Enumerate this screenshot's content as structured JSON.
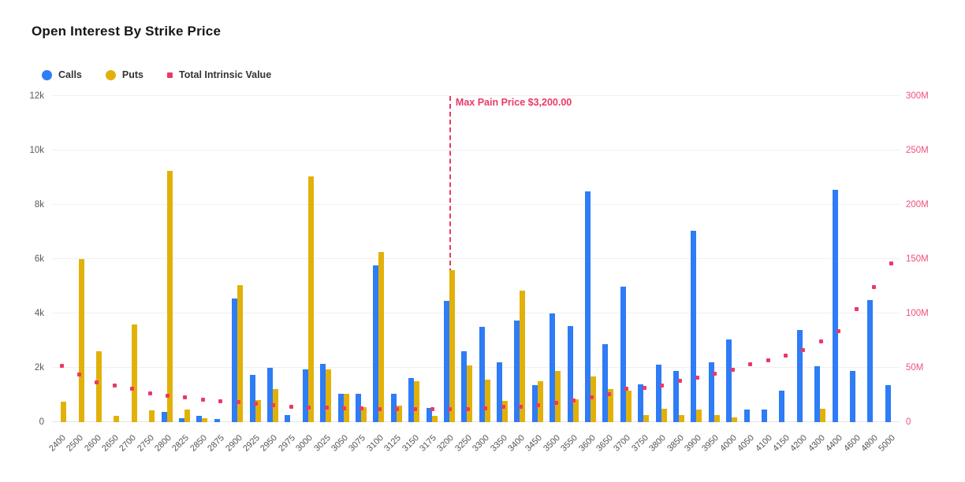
{
  "chart_data": {
    "type": "combo-bar-scatter",
    "title": "Open Interest By Strike Price",
    "legend_position": "top-left",
    "grid": true,
    "background": "#ffffff",
    "categories": [
      "2400",
      "2500",
      "2600",
      "2650",
      "2700",
      "2750",
      "2800",
      "2825",
      "2850",
      "2875",
      "2900",
      "2925",
      "2950",
      "2975",
      "3000",
      "3025",
      "3050",
      "3075",
      "3100",
      "3125",
      "3150",
      "3175",
      "3200",
      "3250",
      "3300",
      "3350",
      "3400",
      "3450",
      "3500",
      "3550",
      "3600",
      "3650",
      "3700",
      "3750",
      "3800",
      "3850",
      "3900",
      "3950",
      "4000",
      "4050",
      "4100",
      "4150",
      "4200",
      "4300",
      "4400",
      "4600",
      "4800",
      "5000"
    ],
    "series": [
      {
        "name": "Calls",
        "type": "bar",
        "axis": "left",
        "color": "#2E7CF6",
        "values": [
          0,
          0,
          0,
          0,
          0,
          0,
          390,
          150,
          220,
          110,
          4550,
          1750,
          2000,
          250,
          1950,
          2150,
          1040,
          1040,
          5770,
          1050,
          1620,
          520,
          4450,
          2620,
          3520,
          2200,
          3740,
          1350,
          4000,
          3550,
          8500,
          2870,
          5000,
          1390,
          2130,
          1890,
          7050,
          2200,
          3030,
          460,
          460,
          1160,
          3400,
          2050,
          8550,
          1890,
          4500,
          1360
        ]
      },
      {
        "name": "Puts",
        "type": "bar",
        "axis": "left",
        "color": "#E2B109",
        "values": [
          750,
          6000,
          2600,
          220,
          3600,
          430,
          9250,
          450,
          150,
          0,
          5050,
          800,
          1230,
          0,
          9050,
          1950,
          1030,
          550,
          6250,
          600,
          1510,
          240,
          5600,
          2090,
          1560,
          770,
          4840,
          1520,
          1890,
          830,
          1670,
          1220,
          1160,
          270,
          500,
          260,
          470,
          260,
          160,
          0,
          0,
          0,
          0,
          490,
          0,
          0,
          0,
          0
        ]
      },
      {
        "name": "Total Intrinsic Value",
        "type": "scatter",
        "axis": "right",
        "unit": "M",
        "color": "#EC3965",
        "values": [
          52,
          43.5,
          36.5,
          33.5,
          30.5,
          26.5,
          24,
          22.5,
          20.5,
          19.5,
          18.2,
          17,
          15.5,
          14.2,
          13.5,
          13.2,
          12.8,
          12.4,
          12.1,
          12,
          12.1,
          12.2,
          11.9,
          12,
          12.4,
          13.8,
          14.4,
          15.6,
          17.9,
          20,
          22.5,
          26,
          30.5,
          31.5,
          34,
          38,
          41,
          44.5,
          48,
          53,
          57,
          61,
          66,
          74.5,
          83.5,
          104,
          124,
          146
        ]
      }
    ],
    "left_axis": {
      "ticks": [
        "0",
        "2k",
        "4k",
        "6k",
        "8k",
        "10k",
        "12k"
      ],
      "min": 0,
      "max": 12000,
      "tick_color": "#595959"
    },
    "right_axis": {
      "ticks": [
        "0",
        "50M",
        "100M",
        "150M",
        "200M",
        "250M",
        "300M"
      ],
      "min": 0,
      "max": 300,
      "tick_color": "#F0507C"
    },
    "x_axis": {
      "tick_rotation_deg": 45,
      "tick_color": "#555555"
    },
    "annotation": {
      "label": "Max Pain Price $3,200.00",
      "strike": "3200",
      "color": "#EC3965"
    }
  }
}
